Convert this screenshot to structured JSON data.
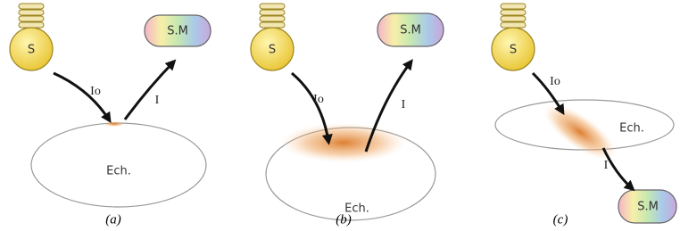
{
  "panels": [
    {
      "source": "S",
      "detector": "S.M",
      "incident": "Io",
      "reflected": "I",
      "sample": "Ech.",
      "caption": "(a)"
    },
    {
      "source": "S",
      "detector": "S.M",
      "incident": "Io",
      "reflected": "I",
      "sample": "Ech.",
      "caption": "(b)"
    },
    {
      "source": "S",
      "detector": "S.M",
      "incident": "Io",
      "reflected": "I",
      "sample": "Ech.",
      "caption": "(c)"
    }
  ]
}
